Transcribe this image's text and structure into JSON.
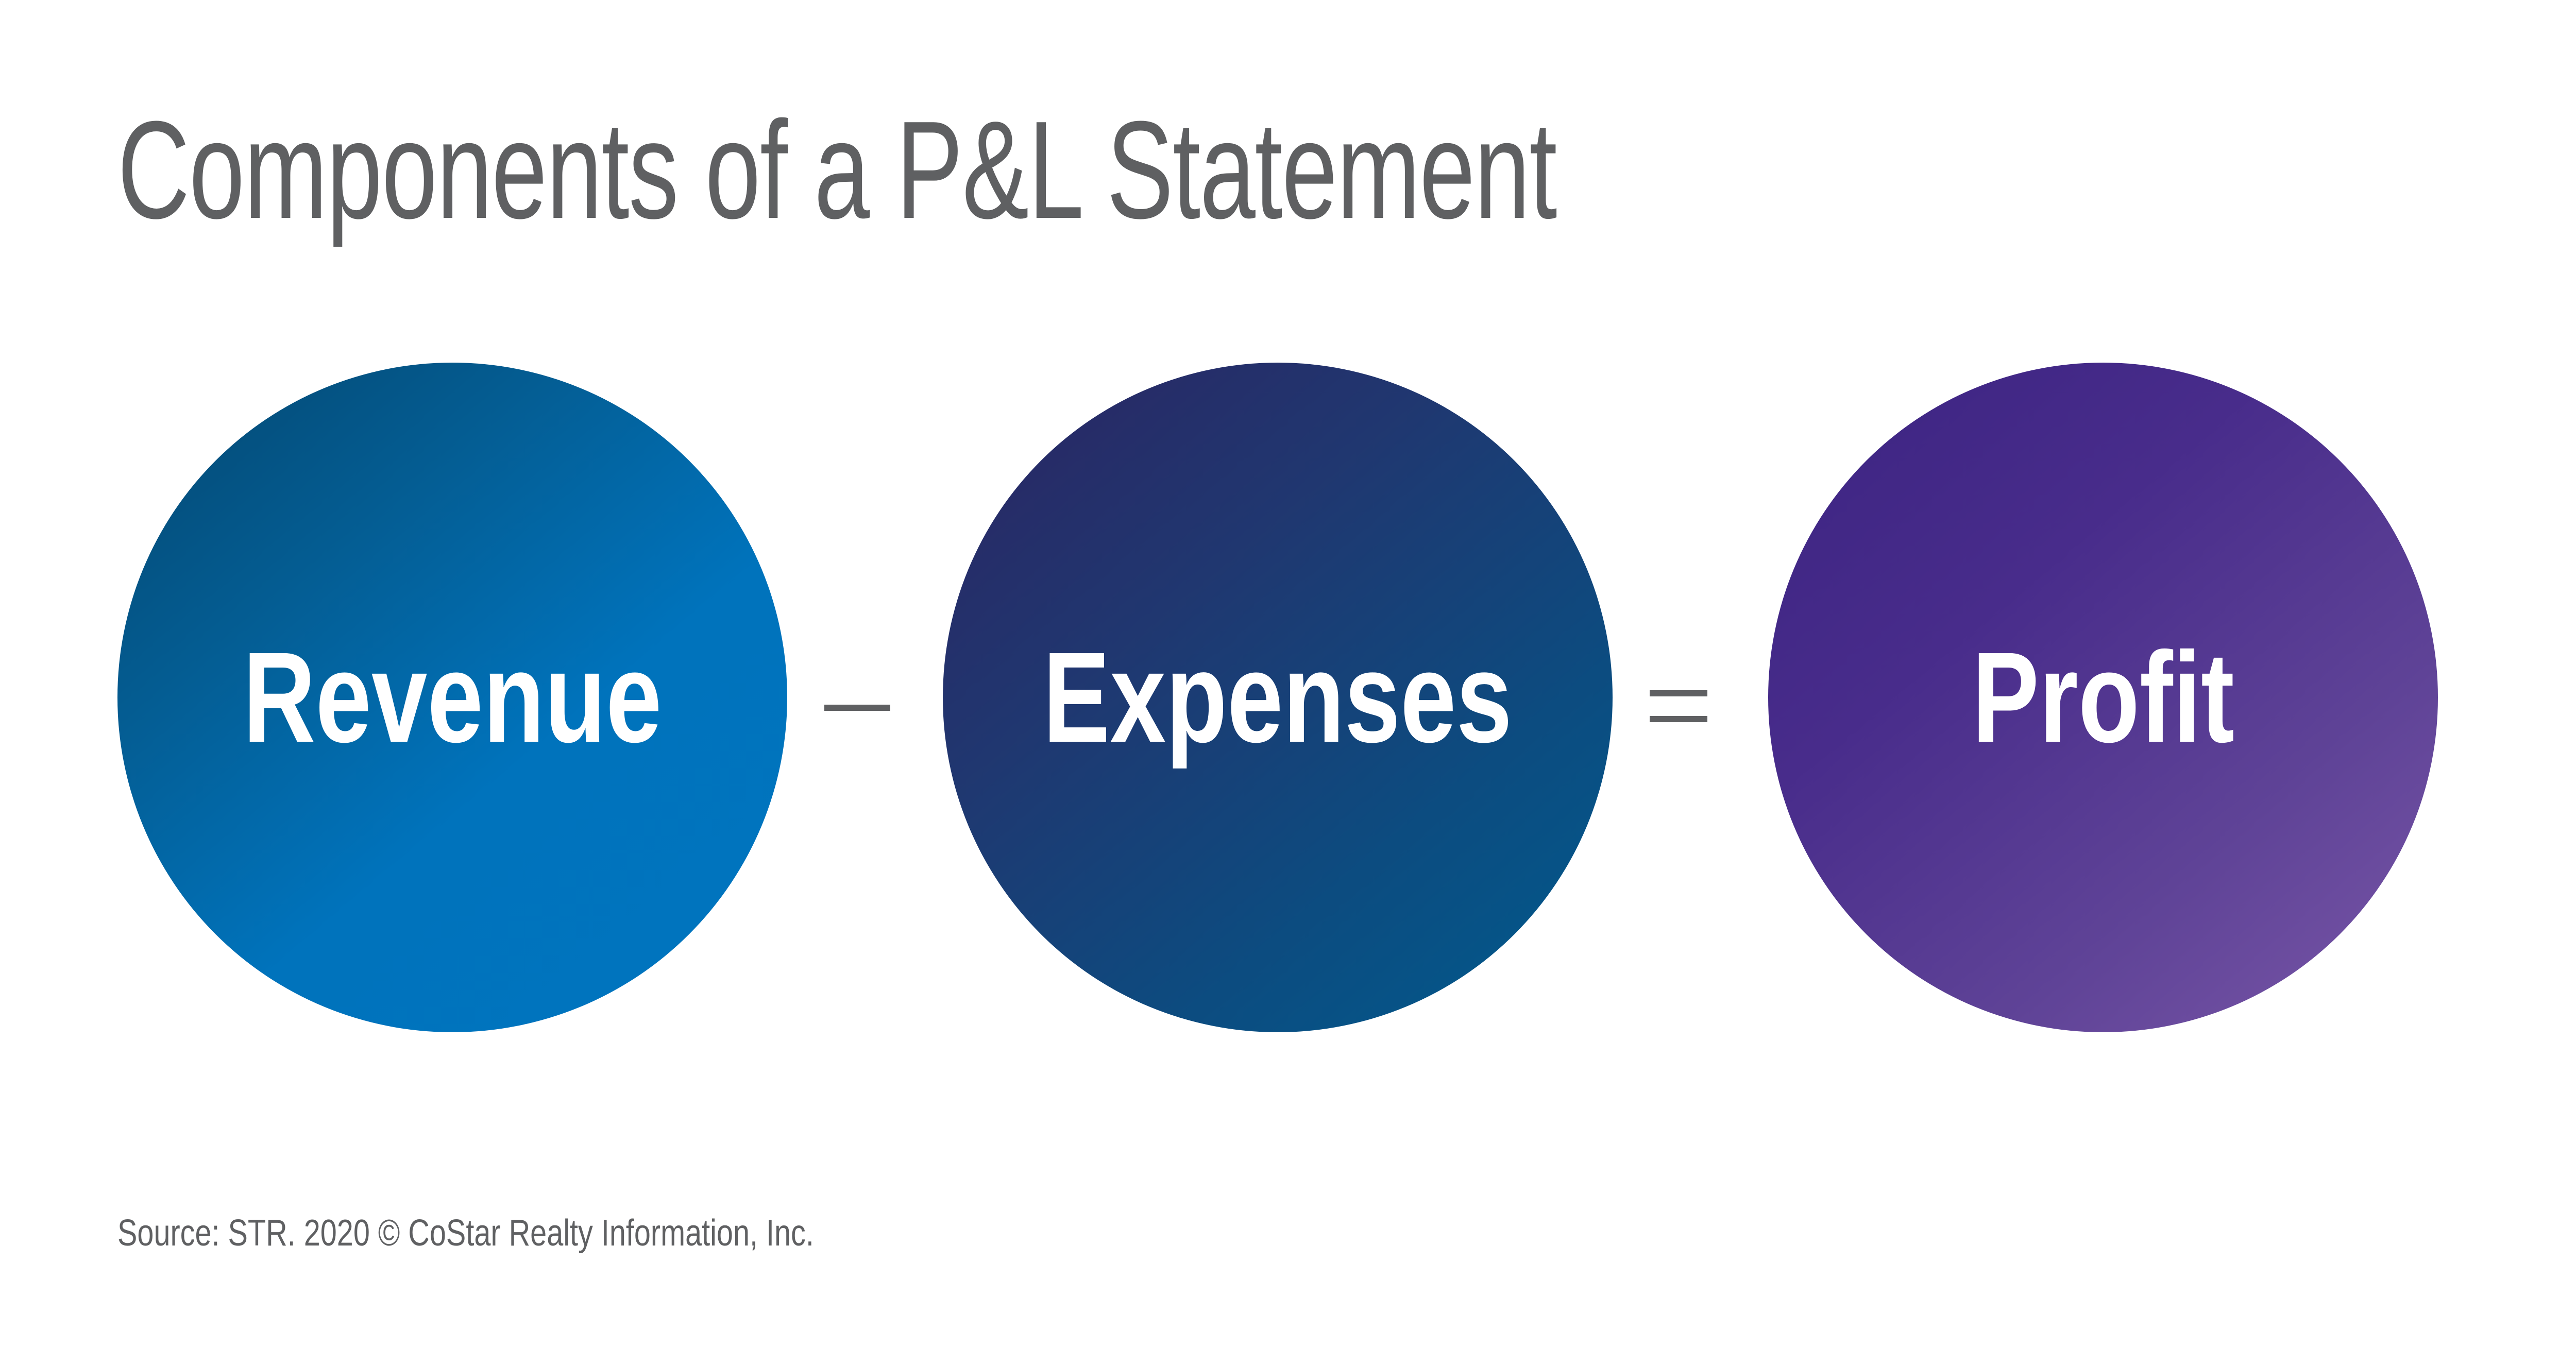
{
  "title": "Components of a P&L Statement",
  "components": {
    "revenue": "Revenue",
    "expenses": "Expenses",
    "profit": "Profit"
  },
  "operators": {
    "minus": "minus",
    "equals": "equals"
  },
  "source": "Source: STR. 2020 © CoStar Realty Information, Inc.",
  "colors": {
    "title_text": "#5f6062",
    "revenue_circle": "#0073bc",
    "expenses_circle": "#203770",
    "profit_circle": "#5f4397"
  }
}
